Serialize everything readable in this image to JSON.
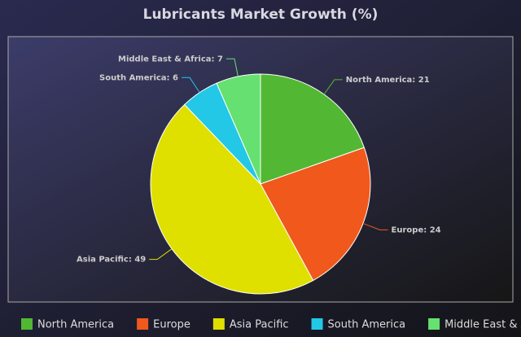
{
  "chart_data": {
    "type": "pie",
    "title": "Lubricants Market Growth (%)",
    "categories": [
      "North America",
      "Europe",
      "Asia Pacific",
      "South America",
      "Middle East & Africa"
    ],
    "values": [
      21,
      24,
      49,
      6,
      7
    ],
    "value_labels": [
      "North America: 21",
      "Europe: 24",
      "Asia Pacific: 49",
      "South America: 6",
      "Middle East & Africa: 7"
    ],
    "colors": [
      "#52b833",
      "#f0581c",
      "#dfdf00",
      "#22c8e6",
      "#66e070"
    ],
    "legend": "bottom"
  }
}
